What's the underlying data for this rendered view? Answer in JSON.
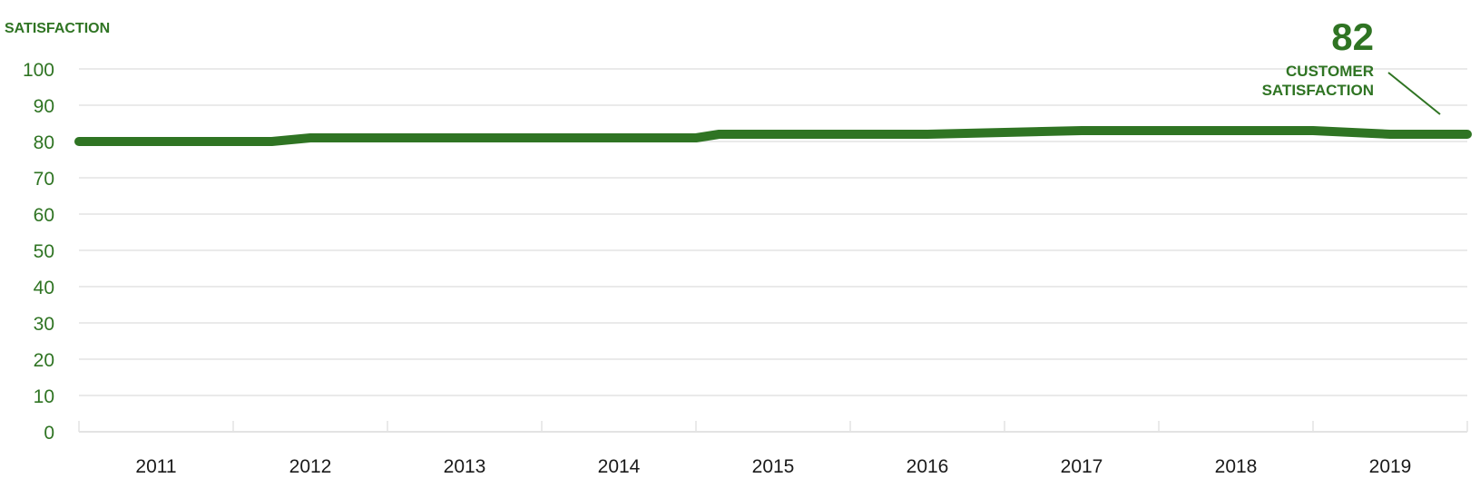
{
  "colors": {
    "accent": "#2f7423",
    "grid": "#e3e3e3",
    "axis_text_x": "#1a1a1a"
  },
  "chart_data": {
    "type": "line",
    "ylabel": "SATISFACTION",
    "ylim": [
      0,
      100
    ],
    "yticks": [
      0,
      10,
      20,
      30,
      40,
      50,
      60,
      70,
      80,
      90,
      100
    ],
    "grid": true,
    "xlim": [
      2010.5,
      2019.5
    ],
    "xticks": [
      "2011",
      "2012",
      "2013",
      "2014",
      "2015",
      "2016",
      "2017",
      "2018",
      "2019"
    ],
    "series": [
      {
        "x": [
          2010.5,
          2011.75,
          2012.0,
          2013.0,
          2013.5,
          2014.0,
          2014.5,
          2014.65,
          2015.0,
          2016.0,
          2017.0,
          2018.0,
          2018.5,
          2019.0,
          2019.5
        ],
        "values": [
          80,
          80,
          81,
          81,
          81,
          81,
          81,
          82,
          82,
          82,
          83,
          83,
          83,
          82,
          82
        ]
      }
    ],
    "callout": {
      "value": "82",
      "label_line1": "CUSTOMER",
      "label_line2": "SATISFACTION"
    }
  }
}
